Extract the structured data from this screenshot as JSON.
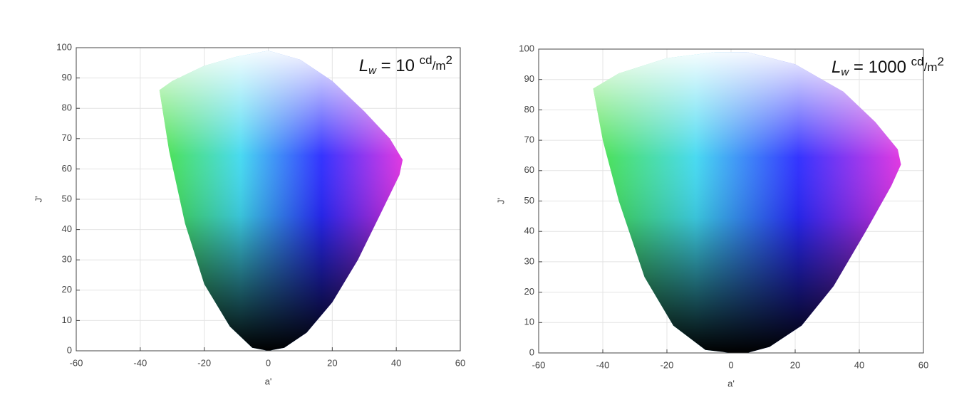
{
  "chart_data": [
    {
      "type": "area",
      "x_label": "a'",
      "y_label": "J'",
      "annotation": [
        "L",
        "w",
        " = 10 ",
        "cd",
        "/m",
        "2"
      ],
      "xlim": [
        -60,
        60
      ],
      "xticks": [
        -60,
        -40,
        -20,
        0,
        20,
        40,
        60
      ],
      "ylim": [
        0,
        100
      ],
      "yticks": [
        0,
        10,
        20,
        30,
        40,
        50,
        60,
        70,
        80,
        90,
        100
      ],
      "grid": true,
      "colors": [
        "#44e040",
        "#40d8f0",
        "#2a2aff",
        "#e030e0"
      ],
      "x": [
        -34,
        -30,
        -20,
        -10,
        0,
        10,
        20,
        30,
        38,
        42,
        41,
        35,
        28,
        20,
        12,
        5,
        0,
        -5,
        -12,
        -20,
        -26,
        -31,
        -34
      ],
      "y": [
        86,
        89,
        94,
        97,
        99,
        96,
        89,
        79,
        70,
        63,
        58,
        45,
        30,
        16,
        6,
        1,
        0,
        1,
        8,
        22,
        42,
        66,
        86
      ]
    },
    {
      "type": "area",
      "x_label": "a'",
      "y_label": "J'",
      "annotation": [
        "L",
        "w",
        " = 1000 ",
        "cd",
        "/m",
        "2"
      ],
      "xlim": [
        -60,
        60
      ],
      "xticks": [
        -60,
        -40,
        -20,
        0,
        20,
        40,
        60
      ],
      "ylim": [
        0,
        100
      ],
      "yticks": [
        0,
        10,
        20,
        30,
        40,
        50,
        60,
        70,
        80,
        90,
        100
      ],
      "grid": true,
      "colors": [
        "#44e040",
        "#40d8f0",
        "#2a2aff",
        "#e030e0"
      ],
      "x": [
        -43,
        -35,
        -20,
        -5,
        5,
        20,
        35,
        45,
        52,
        53,
        50,
        42,
        32,
        22,
        12,
        5,
        0,
        -8,
        -18,
        -27,
        -35,
        -40,
        -43
      ],
      "y": [
        87,
        92,
        97,
        99,
        99,
        95,
        86,
        76,
        67,
        62,
        55,
        40,
        22,
        9,
        2,
        0,
        0,
        1,
        9,
        25,
        50,
        70,
        87
      ]
    }
  ]
}
